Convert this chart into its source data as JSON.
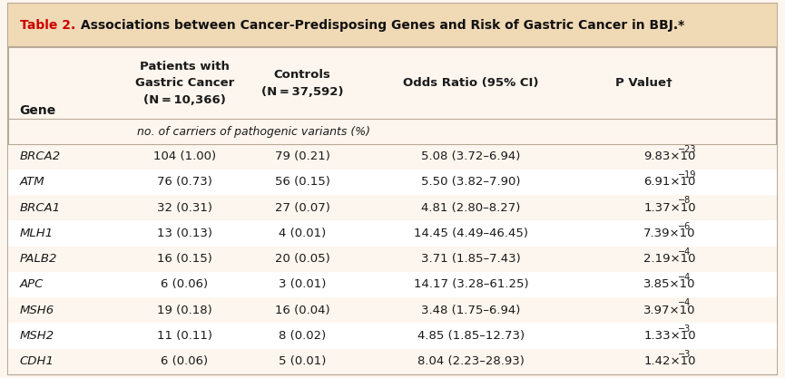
{
  "title_prefix": "Table 2.",
  "title_rest": " Associations between Cancer-Predisposing Genes and Risk of Gastric Cancer in BBJ.*",
  "title_prefix_color": "#cc0000",
  "title_rest_color": "#111111",
  "bg_color": "#fdf6ee",
  "title_bg": "#f0d9b5",
  "border_color": "#b8a898",
  "text_color": "#1a1a1a",
  "genes": [
    "BRCA2",
    "ATM",
    "BRCA1",
    "MLH1",
    "PALB2",
    "APC",
    "MSH6",
    "MSH2",
    "CDH1"
  ],
  "patients": [
    "104 (1.00)",
    "76 (0.73)",
    "32 (0.31)",
    "13 (0.13)",
    "16 (0.15)",
    "6 (0.06)",
    "19 (0.18)",
    "11 (0.11)",
    "6 (0.06)"
  ],
  "controls": [
    "79 (0.21)",
    "56 (0.15)",
    "27 (0.07)",
    "4 (0.01)",
    "20 (0.05)",
    "3 (0.01)",
    "16 (0.04)",
    "8 (0.02)",
    "5 (0.01)"
  ],
  "odds_ratios": [
    "5.08 (3.72–6.94)",
    "5.50 (3.82–7.90)",
    "4.81 (2.80–8.27)",
    "14.45 (4.49–46.45)",
    "3.71 (1.85–7.43)",
    "14.17 (3.28–61.25)",
    "3.48 (1.75–6.94)",
    "4.85 (1.85–12.73)",
    "8.04 (2.23–28.93)"
  ],
  "p_bases": [
    "9.83",
    "6.91",
    "1.37",
    "7.39",
    "2.19",
    "3.85",
    "3.97",
    "1.33",
    "1.42"
  ],
  "p_exps": [
    "−23",
    "−19",
    "−8",
    "−6",
    "−4",
    "−4",
    "−4",
    "−3",
    "−3"
  ],
  "row_colors": [
    "#fdf6ee",
    "#ffffff",
    "#fdf6ee",
    "#ffffff",
    "#fdf6ee",
    "#ffffff",
    "#fdf6ee",
    "#ffffff",
    "#fdf6ee"
  ],
  "figsize": [
    8.65,
    4.17
  ],
  "dpi": 100
}
